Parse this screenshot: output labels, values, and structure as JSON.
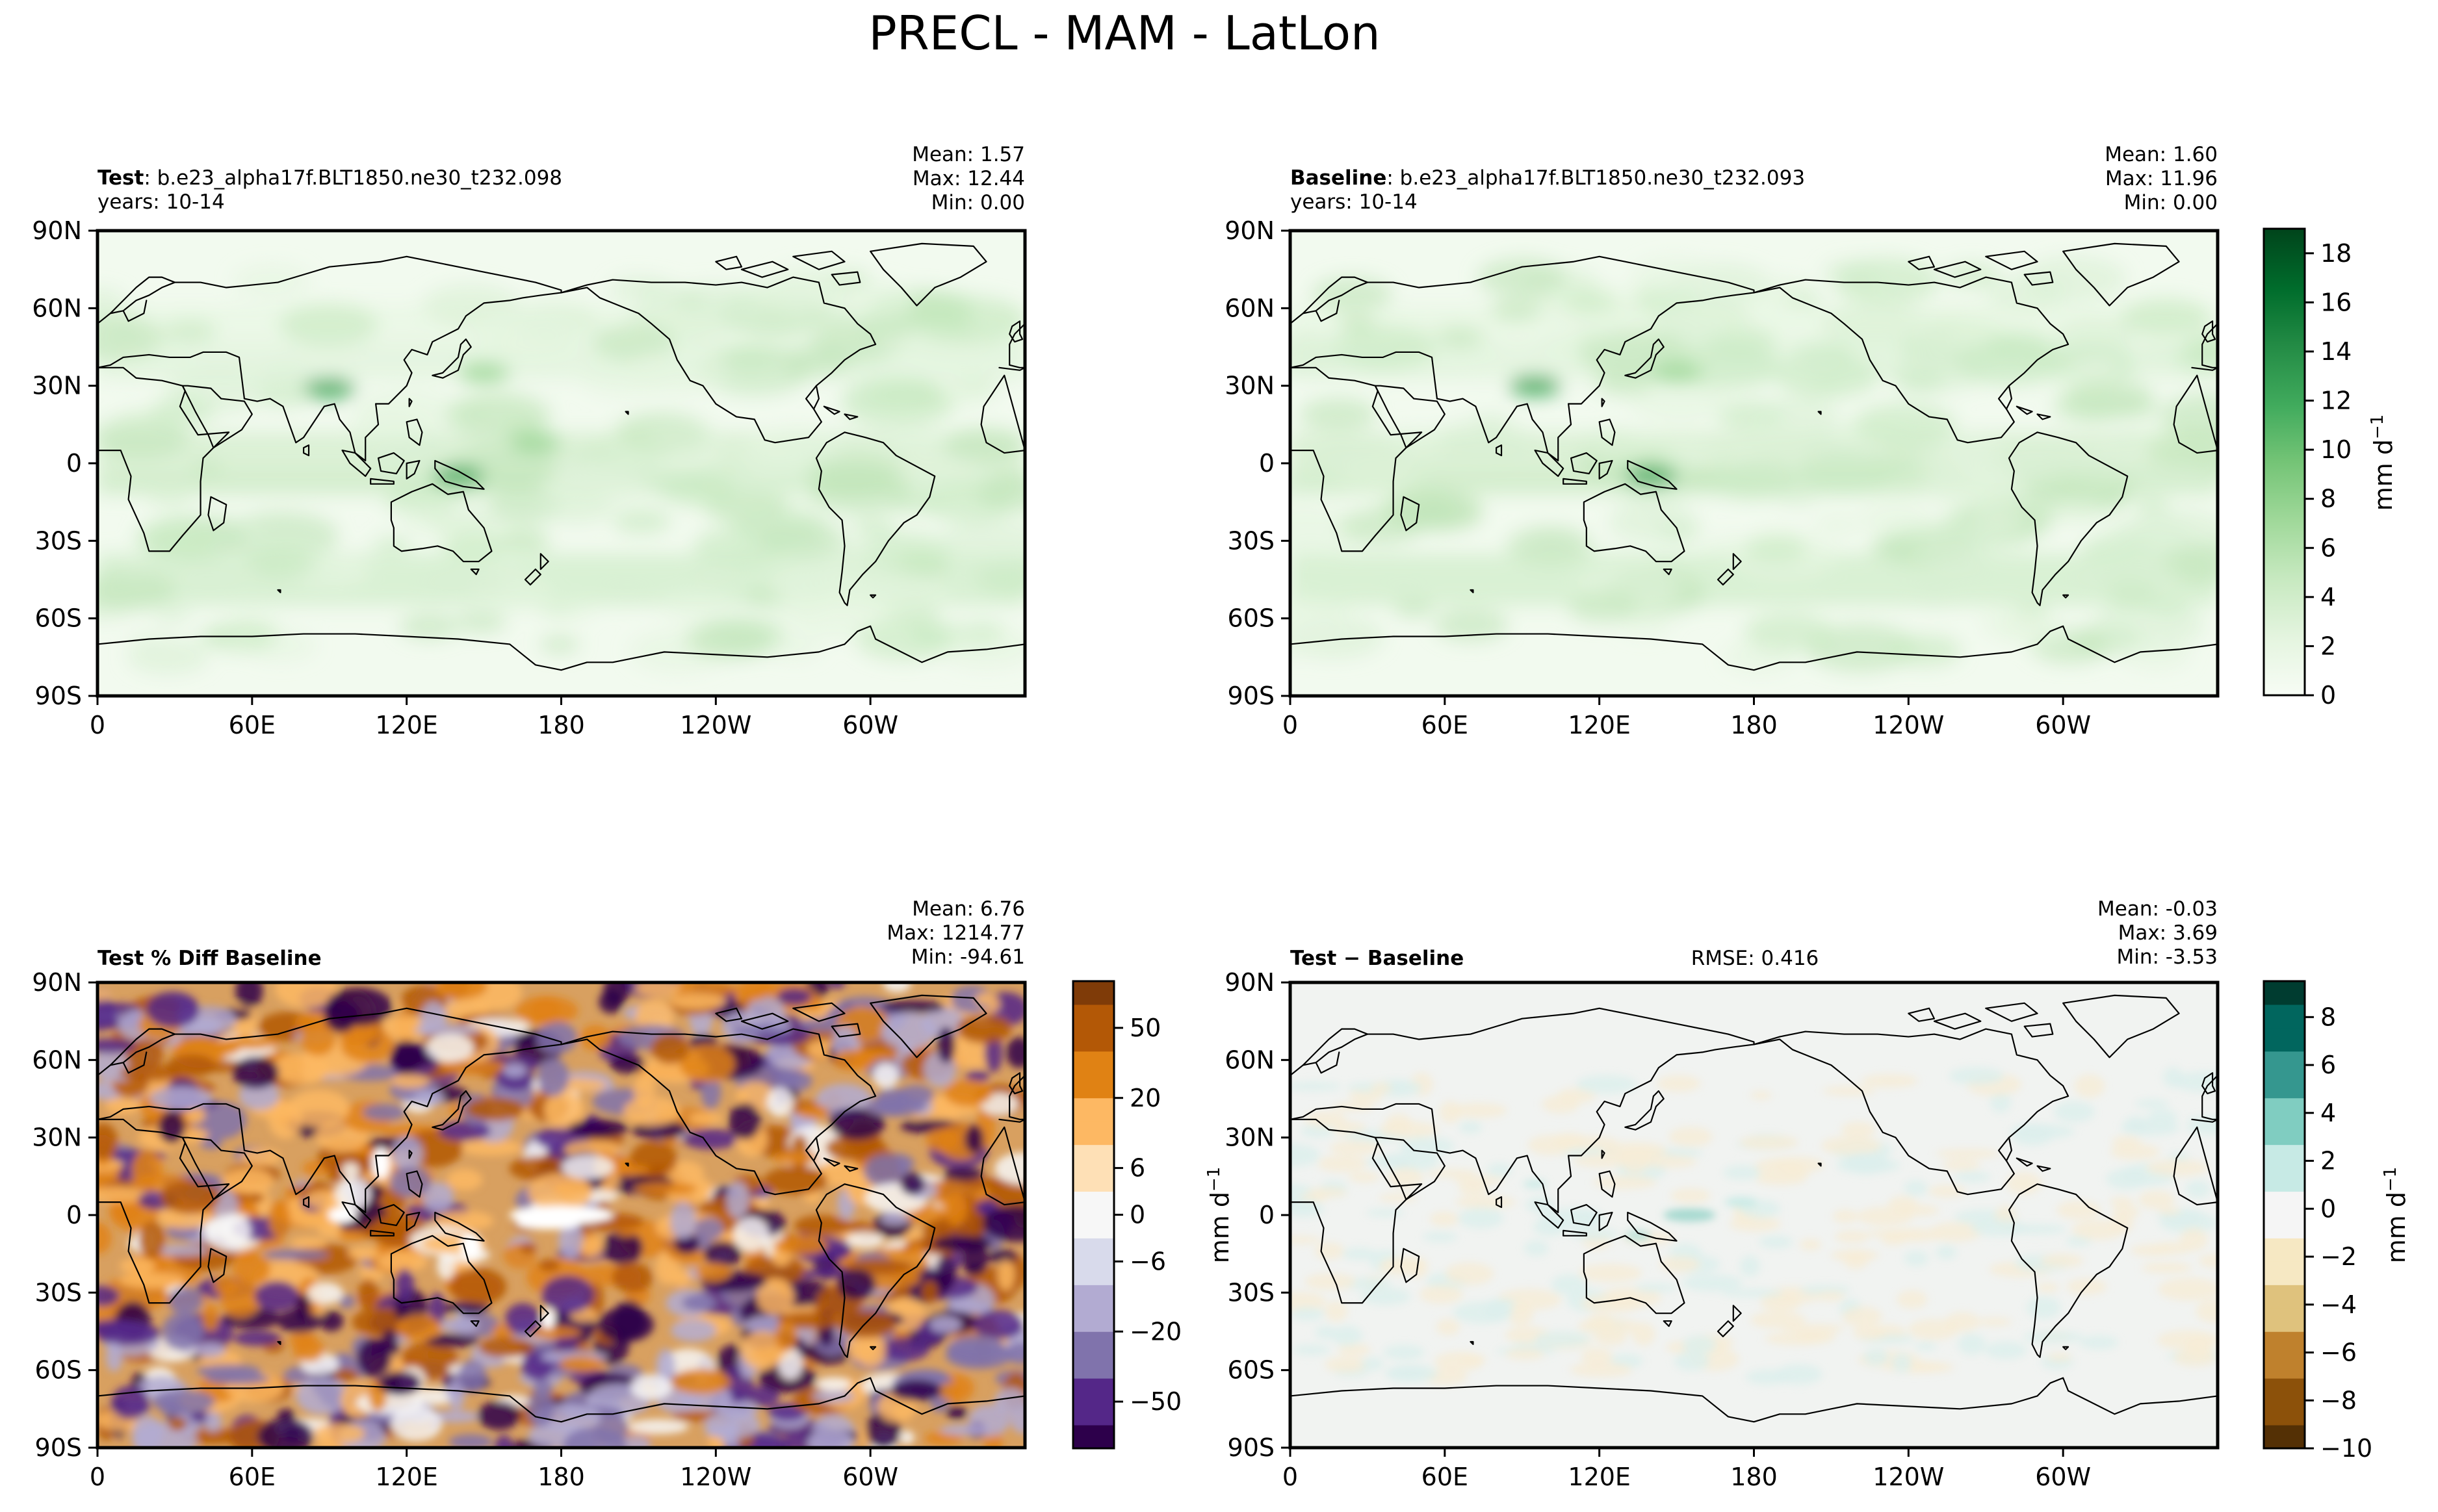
{
  "suptitle": "PRECL - MAM - LatLon",
  "colorbar_unit": "mm d",
  "colorbar_unit_exp": "−1",
  "lat_ticks": [
    "90N",
    "60N",
    "30N",
    "0",
    "30S",
    "60S",
    "90S"
  ],
  "lon_ticks": [
    "0",
    "60E",
    "120E",
    "180",
    "120W",
    "60W"
  ],
  "panels": {
    "test": {
      "title_bold": "Test",
      "title_text": ": b.e23_alpha17f.BLT1850.ne30_t232.098",
      "subtitle": "years: 10-14",
      "stats": [
        "Mean:  1.57",
        "Max: 12.44",
        "Min:  0.00"
      ]
    },
    "baseline": {
      "title_bold": "Baseline",
      "title_text": ": b.e23_alpha17f.BLT1850.ne30_t232.093",
      "subtitle": "years: 10-14",
      "stats": [
        "Mean:  1.60",
        "Max: 11.96",
        "Min:  0.00"
      ]
    },
    "pctdiff": {
      "title_bold": "Test % Diff Baseline",
      "stats": [
        "Mean:  6.76",
        "Max: 1214.77",
        "Min: -94.61"
      ]
    },
    "diff": {
      "title_bold": "Test − Baseline",
      "rmse": "RMSE: 0.416",
      "stats": [
        "Mean: -0.03",
        "Max:  3.69",
        "Min: -3.53"
      ]
    }
  },
  "colors": {
    "greens": [
      "#f7fcf5",
      "#e5f5e0",
      "#c7e9c0",
      "#a1d99b",
      "#74c476",
      "#41ab5d",
      "#238b45",
      "#006d2c",
      "#00441b"
    ],
    "purple_orange": [
      "#2d004b",
      "#542788",
      "#8073ac",
      "#b2abd2",
      "#d8daeb",
      "#f7f7f7",
      "#fee0b6",
      "#fdb863",
      "#e08214",
      "#b35806",
      "#7f3b08"
    ],
    "brown_teal": [
      "#543005",
      "#8c510a",
      "#bf812d",
      "#dfc27d",
      "#f6e8c3",
      "#f5f5f5",
      "#c7eae5",
      "#80cdc1",
      "#35978f",
      "#01665e",
      "#003c30"
    ]
  },
  "chart_data": [
    {
      "id": "test",
      "type": "heatmap",
      "title": "Test: b.e23_alpha17f.BLT1850.ne30_t232.098",
      "subtitle": "years: 10-14",
      "variable": "PRECL",
      "season": "MAM",
      "xlim": [
        0,
        360
      ],
      "ylim": [
        -90,
        90
      ],
      "colorbar": null,
      "stats": {
        "mean": 1.57,
        "max": 12.44,
        "min": 0.0
      },
      "hotspots": [
        {
          "lon": 90,
          "lat": 29,
          "value": 10
        },
        {
          "lon": 140,
          "lat": -5,
          "value": 8
        },
        {
          "lon": 150,
          "lat": 35,
          "value": 4
        },
        {
          "lon": 170,
          "lat": 8,
          "value": 3
        }
      ]
    },
    {
      "id": "baseline",
      "type": "heatmap",
      "title": "Baseline: b.e23_alpha17f.BLT1850.ne30_t232.093",
      "subtitle": "years: 10-14",
      "variable": "PRECL",
      "season": "MAM",
      "xlim": [
        0,
        360
      ],
      "ylim": [
        -90,
        90
      ],
      "stats": {
        "mean": 1.6,
        "max": 11.96,
        "min": 0.0
      },
      "colorbar": {
        "label": "mm d−1",
        "ticks": [
          0,
          2,
          4,
          6,
          8,
          10,
          12,
          14,
          16,
          18
        ],
        "range": [
          0,
          19
        ]
      },
      "hotspots": [
        {
          "lon": 95,
          "lat": 30,
          "value": 10
        },
        {
          "lon": 140,
          "lat": -5,
          "value": 8
        },
        {
          "lon": 150,
          "lat": 35,
          "value": 4
        }
      ]
    },
    {
      "id": "pctdiff",
      "type": "heatmap",
      "title": "Test % Diff Baseline",
      "xlim": [
        0,
        360
      ],
      "ylim": [
        -90,
        90
      ],
      "stats": {
        "mean": 6.76,
        "max": 1214.77,
        "min": -94.61
      },
      "colorbar": {
        "label": "",
        "ticks": [
          -50,
          -20,
          -6,
          0,
          6,
          20,
          50
        ],
        "levels": [
          -100,
          -75,
          -50,
          -40,
          -30,
          -20,
          -15,
          -10,
          -6,
          -3,
          0,
          3,
          6,
          10,
          15,
          20,
          30,
          40,
          50,
          75,
          100
        ]
      }
    },
    {
      "id": "diff",
      "type": "heatmap",
      "title": "Test − Baseline",
      "rmse": 0.416,
      "xlim": [
        0,
        360
      ],
      "ylim": [
        -90,
        90
      ],
      "stats": {
        "mean": -0.03,
        "max": 3.69,
        "min": -3.53
      },
      "colorbar": {
        "label": "mm d−1",
        "ticks": [
          -10,
          -8,
          -6,
          -4,
          -2,
          0,
          2,
          4,
          6,
          8
        ],
        "range": [
          -10,
          9.5
        ]
      }
    }
  ]
}
